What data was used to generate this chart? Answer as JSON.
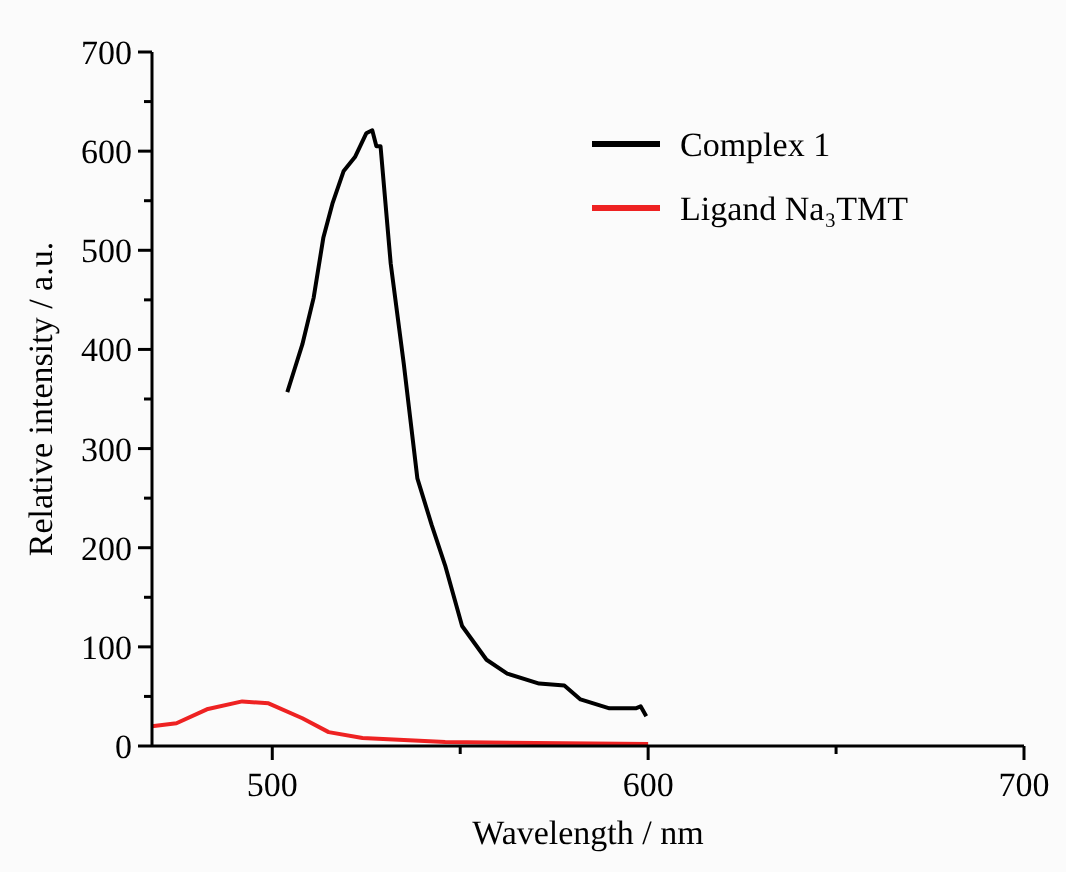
{
  "chart_data": {
    "type": "line",
    "xlabel": "Wavelength / nm",
    "ylabel": "Relative intensity / a.u.",
    "xlim": [
      468,
      700
    ],
    "ylim": [
      0,
      700
    ],
    "xticks": [
      500,
      {
        "value": 550,
        "label": null
      },
      600,
      {
        "value": 650,
        "label": null
      },
      700
    ],
    "yticks": [
      0,
      {
        "value": 50,
        "label": null
      },
      100,
      {
        "value": 150,
        "label": null
      },
      200,
      {
        "value": 250,
        "label": null
      },
      300,
      {
        "value": 350,
        "label": null
      },
      400,
      {
        "value": 450,
        "label": null
      },
      500,
      {
        "value": 550,
        "label": null
      },
      600,
      {
        "value": 650,
        "label": null
      },
      700
    ],
    "legend": "top right",
    "grid": false,
    "line_style": "solid",
    "series": [
      {
        "name": "Complex 1",
        "color": "#000000",
        "x": [
          504,
          506,
          508,
          511,
          513.6,
          516,
          519,
          522,
          525,
          526.6,
          527.7,
          528.8,
          531.5,
          535,
          538.6,
          542.4,
          546,
          550.5,
          557,
          562.5,
          571,
          577.7,
          582,
          589.7,
          596.7,
          598,
          599.5
        ],
        "values": [
          357,
          381,
          405,
          452,
          513,
          547,
          580,
          594,
          618,
          621,
          605,
          605,
          487,
          385,
          270,
          223,
          182,
          121,
          87,
          73,
          63,
          61,
          47,
          38,
          38,
          40,
          30
        ]
      },
      {
        "name": "Ligand Na₃TMT",
        "color": "#ee2222",
        "x": [
          468,
          474.5,
          482.6,
          492,
          499,
          508,
          515,
          524,
          546,
          600
        ],
        "values": [
          20,
          23,
          37,
          45,
          43,
          28,
          14,
          8,
          4,
          2
        ]
      }
    ]
  }
}
